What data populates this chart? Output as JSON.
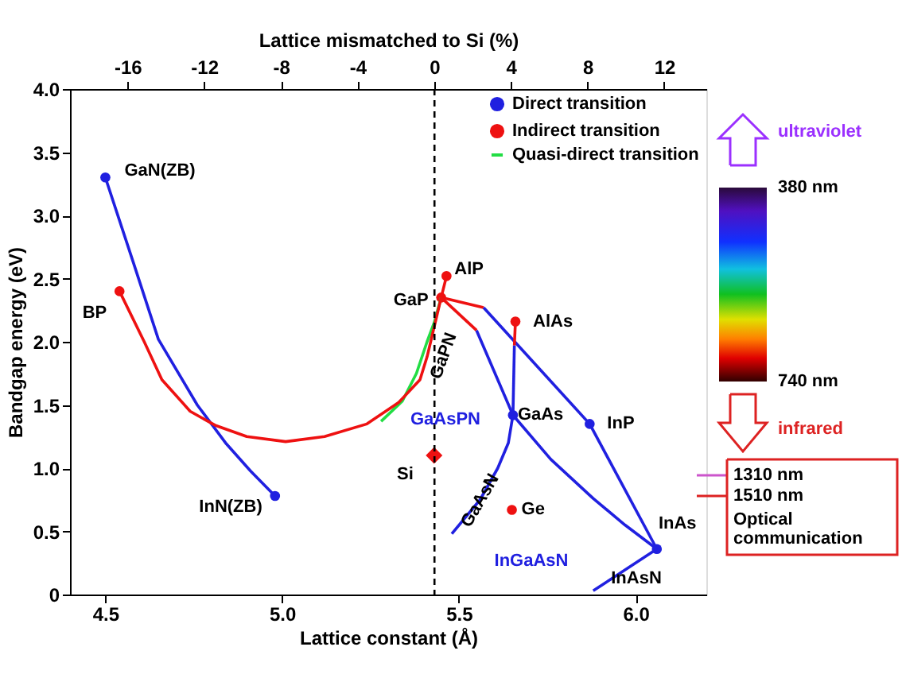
{
  "chart_data": {
    "type": "scatter",
    "xlabel": "Lattice constant (Å)",
    "ylabel": "Bandgap energy (eV)",
    "x2label": "Lattice mismatched to Si (%)",
    "xlim": [
      4.4,
      6.2
    ],
    "xticks": [
      4.5,
      {
        "value": 5,
        "label": "5.0"
      },
      5.5,
      {
        "value": 6,
        "label": "6.0"
      }
    ],
    "ylim": [
      0,
      4
    ],
    "yticks": [
      {
        "value": 0,
        "label": "0"
      },
      0.5,
      {
        "value": 1,
        "label": "1.0"
      },
      1.5,
      {
        "value": 2,
        "label": "2.0"
      },
      2.5,
      {
        "value": 3,
        "label": "3.0"
      },
      3.5,
      {
        "value": 4,
        "label": "4.0"
      }
    ],
    "x2lim": [
      -19,
      14.2
    ],
    "x2ticks": [
      -16,
      -12,
      -8,
      -4,
      0,
      4,
      8,
      12
    ],
    "legend": "top right",
    "grid": false,
    "ref_lines": [
      {
        "axis": "x",
        "value": 5.431,
        "color": "#000000",
        "line_style": "dashed"
      }
    ],
    "series": [
      {
        "name": "Direct transition",
        "marker": "circle",
        "color": "#2020e0",
        "x": [
          4.5,
          4.98,
          5.653,
          5.87,
          6.06
        ],
        "values": [
          3.3,
          0.78,
          1.42,
          1.35,
          0.36
        ]
      },
      {
        "name": "Indirect transition",
        "marker": "circle",
        "color": "#ee1111",
        "x": [
          4.54,
          5.45,
          5.465,
          5.66,
          5.65
        ],
        "values": [
          2.4,
          2.35,
          2.52,
          2.16,
          0.67
        ]
      },
      {
        "name": "Quasi-direct transition",
        "type": "line",
        "color": "#22dd44",
        "x": [
          5.45,
          5.43,
          5.41,
          5.38,
          5.34,
          5.28
        ],
        "values": [
          2.35,
          2.15,
          2.0,
          1.75,
          1.53,
          1.37
        ]
      },
      {
        "marker": "diamond",
        "color": "#ee1111",
        "x": [
          5.43
        ],
        "values": [
          1.1
        ]
      },
      {
        "type": "line",
        "color": "#2020e0",
        "x": [
          4.5,
          4.58,
          4.65,
          4.76,
          4.84,
          4.91,
          4.98
        ],
        "values": [
          3.3,
          2.62,
          2.02,
          1.5,
          1.2,
          0.98,
          0.78
        ]
      },
      {
        "type": "line",
        "color": "#ee1111",
        "x": [
          4.54,
          4.61,
          4.66,
          4.74,
          4.81,
          4.9,
          5.01,
          5.12,
          5.24,
          5.33,
          5.39,
          5.41,
          5.45
        ],
        "values": [
          2.4,
          2.0,
          1.7,
          1.45,
          1.34,
          1.25,
          1.21,
          1.25,
          1.35,
          1.52,
          1.7,
          1.88,
          2.35
        ]
      },
      {
        "type": "line",
        "color": "#ee1111",
        "x": [
          5.45,
          5.465
        ],
        "values": [
          2.35,
          2.52
        ]
      },
      {
        "type": "line",
        "color": "#ee1111",
        "x": [
          5.45,
          5.57
        ],
        "values": [
          2.35,
          2.27
        ]
      },
      {
        "type": "line",
        "color": "#2020e0",
        "x": [
          5.57,
          5.87
        ],
        "values": [
          2.27,
          1.35
        ]
      },
      {
        "type": "line",
        "color": "#ee1111",
        "x": [
          5.45,
          5.55
        ],
        "values": [
          2.35,
          2.09
        ]
      },
      {
        "type": "line",
        "color": "#2020e0",
        "x": [
          5.55,
          5.653
        ],
        "values": [
          2.09,
          1.42
        ]
      },
      {
        "type": "line",
        "color": "#ee1111",
        "x": [
          5.66,
          5.657
        ],
        "values": [
          2.16,
          1.97
        ]
      },
      {
        "type": "line",
        "color": "#2020e0",
        "x": [
          5.657,
          5.653
        ],
        "values": [
          1.97,
          1.42
        ]
      },
      {
        "type": "line",
        "color": "#2020e0",
        "x": [
          5.653,
          5.76,
          5.88,
          5.97,
          6.06
        ],
        "values": [
          1.42,
          1.07,
          0.76,
          0.55,
          0.36
        ]
      },
      {
        "type": "line",
        "color": "#2020e0",
        "x": [
          5.87,
          6.06
        ],
        "values": [
          1.35,
          0.36
        ]
      },
      {
        "type": "line",
        "color": "#2020e0",
        "x": [
          5.653,
          5.64,
          5.61,
          5.56,
          5.48
        ],
        "values": [
          1.42,
          1.2,
          1.0,
          0.75,
          0.48
        ]
      },
      {
        "type": "line",
        "color": "#2020e0",
        "x": [
          6.06,
          5.88
        ],
        "values": [
          0.36,
          0.03
        ]
      }
    ],
    "annotations": [
      {
        "text": "GaN(ZB)",
        "x": 4.5,
        "y": 3.3
      },
      {
        "text": "BP",
        "x": 4.54,
        "y": 2.4
      },
      {
        "text": "InN(ZB)",
        "x": 4.98,
        "y": 0.78
      },
      {
        "text": "GaP",
        "x": 5.45,
        "y": 2.35
      },
      {
        "text": "AlP",
        "x": 5.465,
        "y": 2.52
      },
      {
        "text": "AlAs",
        "x": 5.66,
        "y": 2.16
      },
      {
        "text": "GaAs",
        "x": 5.653,
        "y": 1.42
      },
      {
        "text": "InP",
        "x": 5.87,
        "y": 1.35
      },
      {
        "text": "InAs",
        "x": 6.06,
        "y": 0.36
      },
      {
        "text": "Ge",
        "x": 5.65,
        "y": 0.67
      },
      {
        "text": "Si",
        "x": 5.43,
        "y": 1.1
      },
      "GaPN",
      "GaAsPN",
      "GaAsN",
      "InGaAsN",
      "InAsN",
      "ultraviolet",
      "380 nm",
      "740 nm",
      "infrared",
      "1310 nm",
      "1510 nm",
      "Optical communication"
    ]
  }
}
